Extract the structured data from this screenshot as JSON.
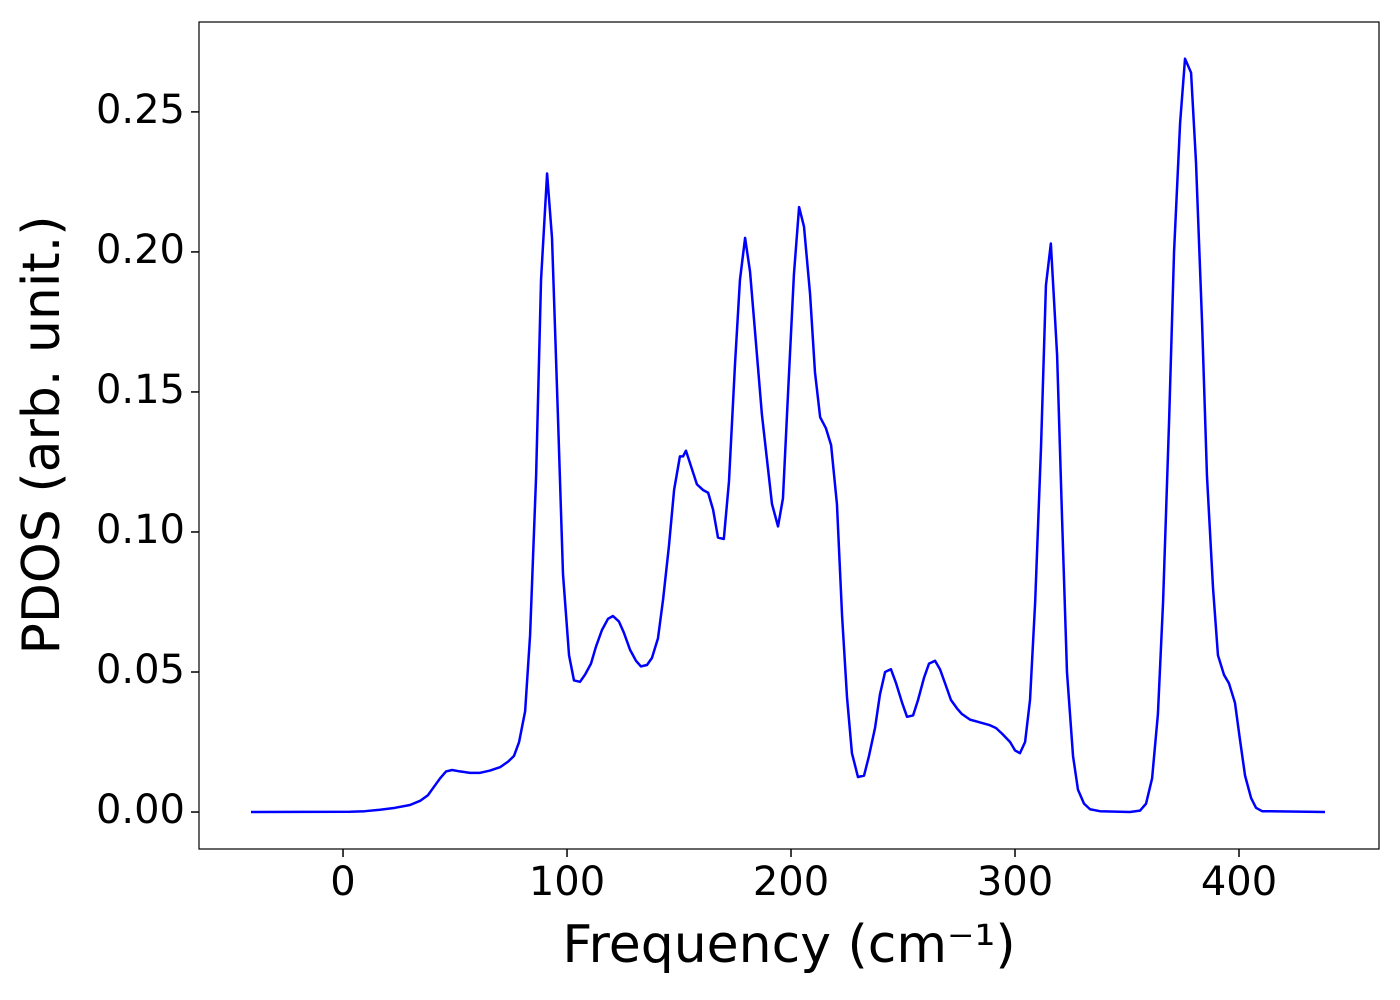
{
  "chart_data": {
    "type": "line",
    "xlabel": "Frequency (cm⁻¹)",
    "ylabel": "PDOS (arb. unit.)",
    "xlim": [
      -64.3,
      462.5
    ],
    "ylim": [
      -0.0132,
      0.2821
    ],
    "xticks": [
      0,
      100,
      200,
      300,
      400
    ],
    "yticks": [
      {
        "value": 0,
        "label": "0.00"
      },
      {
        "value": 0.05,
        "label": "0.05"
      },
      {
        "value": 0.1,
        "label": "0.10"
      },
      {
        "value": 0.15,
        "label": "0.15"
      },
      {
        "value": 0.2,
        "label": "0.20"
      },
      {
        "value": 0.25,
        "label": "0.25"
      }
    ],
    "x": [
      -41.1,
      3.1,
      9.8,
      16.5,
      23.2,
      29.9,
      34.4,
      37.9,
      40.6,
      43.3,
      46,
      48.7,
      52.2,
      56.7,
      61.2,
      65.6,
      70.1,
      73.7,
      76.3,
      78.6,
      81.3,
      83.5,
      86.2,
      88.4,
      91.1,
      93.3,
      96,
      98.2,
      100.9,
      103.1,
      105.8,
      108,
      110.7,
      112.9,
      115.6,
      118.3,
      120.5,
      123.2,
      125.4,
      128.1,
      130.8,
      133,
      135.7,
      137.9,
      140.6,
      142.9,
      145.5,
      147.8,
      150.4,
      151.8,
      153.1,
      158,
      160.7,
      163,
      165.2,
      167.4,
      170,
      172.3,
      175,
      177.2,
      179.5,
      181.7,
      187,
      191.5,
      194.2,
      196.4,
      198.7,
      201.3,
      203.6,
      205.8,
      208.5,
      210.7,
      213,
      215.6,
      217.9,
      220.5,
      222.8,
      225,
      227.2,
      229.9,
      232.6,
      234.8,
      237.5,
      239.7,
      242,
      244.6,
      246.9,
      249.6,
      251.8,
      254.5,
      256.7,
      259.4,
      261.6,
      264.3,
      266.5,
      269.2,
      271.4,
      274.1,
      276.3,
      279.9,
      284.4,
      288.8,
      291.5,
      294.2,
      297.8,
      300,
      302.2,
      304.5,
      306.7,
      309,
      311.6,
      313.8,
      316,
      318.8,
      321,
      323.2,
      325.9,
      328.1,
      330.8,
      333.5,
      337.9,
      351.3,
      355.8,
      358.5,
      361.2,
      363.8,
      366.1,
      368.8,
      371,
      373.7,
      375.9,
      378.6,
      380.8,
      383.5,
      385.7,
      388.4,
      390.6,
      393.3,
      395.5,
      398.2,
      400.4,
      402.7,
      405.4,
      407.6,
      410.3,
      438.4
    ],
    "series": [
      {
        "color": "#0000ff",
        "values": [
          0,
          0.0001,
          0.0003,
          0.0008,
          0.0015,
          0.0025,
          0.004,
          0.006,
          0.009,
          0.012,
          0.0145,
          0.015,
          0.0145,
          0.014,
          0.014,
          0.0148,
          0.016,
          0.018,
          0.02,
          0.025,
          0.036,
          0.063,
          0.12,
          0.19,
          0.228,
          0.205,
          0.14,
          0.085,
          0.056,
          0.047,
          0.0465,
          0.049,
          0.053,
          0.059,
          0.065,
          0.069,
          0.07,
          0.068,
          0.064,
          0.058,
          0.054,
          0.052,
          0.0525,
          0.055,
          0.062,
          0.076,
          0.095,
          0.115,
          0.127,
          0.127,
          0.129,
          0.117,
          0.115,
          0.114,
          0.108,
          0.098,
          0.0975,
          0.118,
          0.16,
          0.19,
          0.205,
          0.193,
          0.142,
          0.11,
          0.102,
          0.112,
          0.15,
          0.192,
          0.216,
          0.209,
          0.185,
          0.157,
          0.141,
          0.137,
          0.131,
          0.11,
          0.07,
          0.041,
          0.021,
          0.0125,
          0.013,
          0.02,
          0.03,
          0.042,
          0.05,
          0.051,
          0.046,
          0.039,
          0.034,
          0.0345,
          0.04,
          0.048,
          0.053,
          0.054,
          0.051,
          0.045,
          0.04,
          0.037,
          0.035,
          0.033,
          0.032,
          0.031,
          0.03,
          0.028,
          0.025,
          0.022,
          0.021,
          0.025,
          0.04,
          0.075,
          0.13,
          0.188,
          0.203,
          0.163,
          0.105,
          0.05,
          0.02,
          0.008,
          0.003,
          0.001,
          0.0003,
          0,
          0.0005,
          0.003,
          0.012,
          0.035,
          0.075,
          0.14,
          0.2,
          0.246,
          0.269,
          0.264,
          0.232,
          0.175,
          0.12,
          0.08,
          0.056,
          0.049,
          0.046,
          0.039,
          0.026,
          0.013,
          0.005,
          0.0015,
          0.0003,
          0
        ]
      }
    ]
  }
}
